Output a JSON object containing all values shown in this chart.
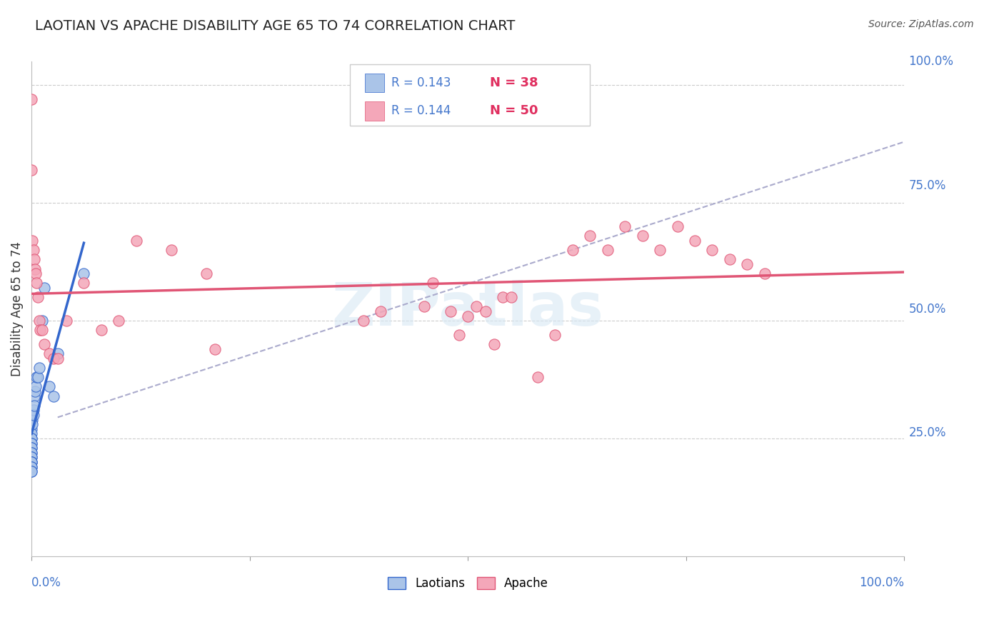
{
  "title": "LAOTIAN VS APACHE DISABILITY AGE 65 TO 74 CORRELATION CHART",
  "source": "Source: ZipAtlas.com",
  "ylabel": "Disability Age 65 to 74",
  "watermark": "ZIPatlas",
  "legend_laotian_R": "R = 0.143",
  "legend_laotian_N": "N = 38",
  "legend_apache_R": "R = 0.144",
  "legend_apache_N": "N = 50",
  "laotian_color": "#aac4e8",
  "apache_color": "#f4a7b9",
  "laotian_line_color": "#3366cc",
  "apache_line_color": "#e05575",
  "dashed_line_color": "#aaaacc",
  "background_color": "#ffffff",
  "grid_color": "#cccccc",
  "label_color": "#4477cc",
  "text_color": "#333333",
  "laotian_x": [
    0.0,
    0.0,
    0.0,
    0.0,
    0.0,
    0.0,
    0.0,
    0.0,
    0.0,
    0.0,
    0.0,
    0.0,
    0.0,
    0.0,
    0.0,
    0.0,
    0.0,
    0.0,
    0.0,
    0.0,
    0.001,
    0.001,
    0.001,
    0.002,
    0.002,
    0.003,
    0.003,
    0.004,
    0.005,
    0.006,
    0.007,
    0.009,
    0.012,
    0.015,
    0.02,
    0.025,
    0.03,
    0.06
  ],
  "laotian_y": [
    0.29,
    0.27,
    0.26,
    0.25,
    0.25,
    0.24,
    0.24,
    0.23,
    0.23,
    0.22,
    0.22,
    0.21,
    0.21,
    0.2,
    0.2,
    0.2,
    0.19,
    0.19,
    0.18,
    0.18,
    0.3,
    0.29,
    0.28,
    0.31,
    0.3,
    0.34,
    0.32,
    0.35,
    0.36,
    0.38,
    0.38,
    0.4,
    0.5,
    0.57,
    0.36,
    0.34,
    0.43,
    0.6
  ],
  "apache_x": [
    0.0,
    0.0,
    0.001,
    0.002,
    0.003,
    0.004,
    0.005,
    0.006,
    0.007,
    0.009,
    0.01,
    0.012,
    0.015,
    0.02,
    0.025,
    0.03,
    0.04,
    0.06,
    0.08,
    0.1,
    0.12,
    0.16,
    0.2,
    0.21,
    0.38,
    0.4,
    0.45,
    0.46,
    0.48,
    0.49,
    0.5,
    0.51,
    0.52,
    0.53,
    0.54,
    0.55,
    0.58,
    0.6,
    0.62,
    0.64,
    0.66,
    0.68,
    0.7,
    0.72,
    0.74,
    0.76,
    0.78,
    0.8,
    0.82,
    0.84
  ],
  "apache_y": [
    0.97,
    0.82,
    0.67,
    0.65,
    0.63,
    0.61,
    0.6,
    0.58,
    0.55,
    0.5,
    0.48,
    0.48,
    0.45,
    0.43,
    0.42,
    0.42,
    0.5,
    0.58,
    0.48,
    0.5,
    0.67,
    0.65,
    0.6,
    0.44,
    0.5,
    0.52,
    0.53,
    0.58,
    0.52,
    0.47,
    0.51,
    0.53,
    0.52,
    0.45,
    0.55,
    0.55,
    0.38,
    0.47,
    0.65,
    0.68,
    0.65,
    0.7,
    0.68,
    0.65,
    0.7,
    0.67,
    0.65,
    0.63,
    0.62,
    0.6
  ],
  "xlim": [
    0.0,
    1.0
  ],
  "ylim": [
    0.0,
    1.05
  ],
  "ytick_positions": [
    0.25,
    0.5,
    0.75,
    1.0
  ],
  "ytick_labels": [
    "25.0%",
    "50.0%",
    "75.0%",
    "100.0%"
  ]
}
